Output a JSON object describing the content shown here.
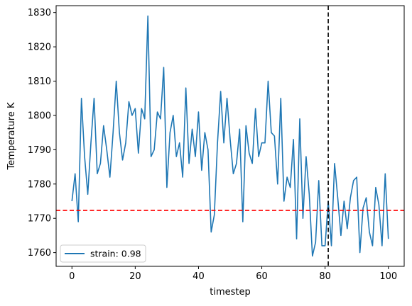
{
  "chart_data": {
    "type": "line",
    "xlabel": "timestep",
    "ylabel": "Temperature K",
    "xlim": [
      -5,
      105
    ],
    "ylim": [
      1756,
      1832
    ],
    "x_ticks": [
      0,
      20,
      40,
      60,
      80,
      100
    ],
    "y_ticks": [
      1760,
      1770,
      1780,
      1790,
      1800,
      1810,
      1820,
      1830
    ],
    "legend_position": "lower-left",
    "grid": false,
    "series": [
      {
        "name": "strain: 0.98",
        "color": "#1f77b4",
        "x": [
          0,
          1,
          2,
          3,
          4,
          5,
          6,
          7,
          8,
          9,
          10,
          11,
          12,
          13,
          14,
          15,
          16,
          17,
          18,
          19,
          20,
          21,
          22,
          23,
          24,
          25,
          26,
          27,
          28,
          29,
          30,
          31,
          32,
          33,
          34,
          35,
          36,
          37,
          38,
          39,
          40,
          41,
          42,
          43,
          44,
          45,
          46,
          47,
          48,
          49,
          50,
          51,
          52,
          53,
          54,
          55,
          56,
          57,
          58,
          59,
          60,
          61,
          62,
          63,
          64,
          65,
          66,
          67,
          68,
          69,
          70,
          71,
          72,
          73,
          74,
          75,
          76,
          77,
          78,
          79,
          80,
          81,
          82,
          83,
          84,
          85,
          86,
          87,
          88,
          89,
          90,
          91,
          92,
          93,
          94,
          95,
          96,
          97,
          98,
          99,
          100
        ],
        "y": [
          1775,
          1783,
          1769,
          1805,
          1788,
          1777,
          1792,
          1805,
          1783,
          1786,
          1797,
          1790,
          1782,
          1795,
          1810,
          1795,
          1787,
          1792,
          1804,
          1800,
          1802,
          1789,
          1802,
          1799,
          1829,
          1788,
          1790,
          1801,
          1799,
          1814,
          1779,
          1795,
          1800,
          1788,
          1792,
          1782,
          1808,
          1786,
          1796,
          1788,
          1801,
          1784,
          1795,
          1790,
          1766,
          1771,
          1792,
          1807,
          1792,
          1805,
          1793,
          1783,
          1786,
          1796,
          1769,
          1797,
          1789,
          1786,
          1802,
          1788,
          1792,
          1792,
          1810,
          1795,
          1794,
          1780,
          1805,
          1775,
          1782,
          1779,
          1793,
          1764,
          1799,
          1770,
          1788,
          1777,
          1759,
          1763,
          1781,
          1762,
          1762,
          1775,
          1762,
          1786,
          1776,
          1765,
          1775,
          1767,
          1776,
          1781,
          1782,
          1760,
          1773,
          1776,
          1766,
          1762,
          1779,
          1774,
          1762,
          1783,
          1764
        ]
      }
    ],
    "reference_lines": [
      {
        "orientation": "horizontal",
        "value": 1772.3,
        "color": "#ff0000",
        "style": "dashed"
      },
      {
        "orientation": "vertical",
        "value": 81,
        "color": "#000000",
        "style": "dashed"
      }
    ]
  }
}
